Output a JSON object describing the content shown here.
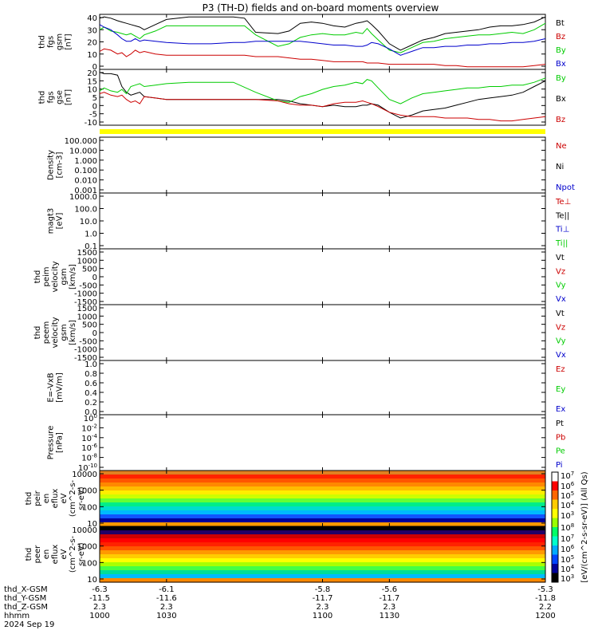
{
  "title": "P3 (TH-D) fields and on-board moments overview",
  "colors": {
    "black": "#000000",
    "red": "#cc0000",
    "green": "#00cc00",
    "blue": "#0000cc",
    "yellow": "#ffff00"
  },
  "chart_data": [
    {
      "id": "fgs1",
      "type": "line",
      "ylabel": [
        "thd",
        "fgs",
        "gsm",
        "[nT]"
      ],
      "ylim": [
        0,
        43
      ],
      "yticks": [
        "40",
        "30",
        "20",
        "10",
        "0"
      ],
      "legend": [
        {
          "name": "Bt",
          "color": "#000000"
        },
        {
          "name": "Bz",
          "color": "#cc0000"
        },
        {
          "name": "By",
          "color": "#00cc00"
        },
        {
          "name": "Bx",
          "color": "#0000cc"
        }
      ],
      "series": [
        {
          "name": "Bt",
          "color": "#000000",
          "x": [
            1000,
            1002,
            1005,
            1008,
            1010,
            1012,
            1014,
            1016,
            1018,
            1020,
            1025,
            1030,
            1040,
            1050,
            1060,
            1065,
            1070,
            1080,
            1085,
            1090,
            1095,
            1100,
            1105,
            1110,
            1115,
            1118,
            1120,
            1122,
            1125,
            1130,
            1135,
            1140,
            1145,
            1150,
            1155,
            1160,
            1165,
            1170,
            1175,
            1180,
            1185,
            1190,
            1195,
            1200
          ],
          "y": [
            40,
            41,
            40,
            38,
            37,
            36,
            35,
            34,
            33,
            31,
            35,
            39,
            41,
            41,
            41,
            40,
            29,
            28,
            30,
            36,
            37,
            36,
            34,
            33,
            36,
            37,
            38,
            35,
            30,
            20,
            15,
            19,
            23,
            25,
            28,
            29,
            30,
            31,
            33,
            34,
            34,
            35,
            37,
            41
          ]
        },
        {
          "name": "By",
          "color": "#00cc00",
          "x": [
            1000,
            1002,
            1005,
            1008,
            1010,
            1012,
            1014,
            1016,
            1018,
            1020,
            1025,
            1030,
            1040,
            1050,
            1060,
            1065,
            1070,
            1080,
            1085,
            1090,
            1095,
            1100,
            1105,
            1110,
            1115,
            1118,
            1120,
            1122,
            1125,
            1130,
            1135,
            1140,
            1145,
            1150,
            1155,
            1160,
            1165,
            1170,
            1175,
            1180,
            1185,
            1190,
            1195,
            1200
          ],
          "y": [
            31,
            33,
            30,
            29,
            28,
            27,
            28,
            26,
            24,
            27,
            30,
            34,
            34,
            34,
            34,
            34,
            27,
            18,
            20,
            25,
            27,
            28,
            27,
            27,
            29,
            28,
            32,
            28,
            23,
            15,
            13,
            17,
            21,
            22,
            24,
            25,
            26,
            27,
            27,
            28,
            29,
            28,
            31,
            36
          ]
        },
        {
          "name": "Bx",
          "color": "#0000cc",
          "x": [
            1000,
            1002,
            1005,
            1008,
            1010,
            1012,
            1014,
            1016,
            1018,
            1020,
            1025,
            1030,
            1040,
            1050,
            1060,
            1065,
            1070,
            1080,
            1085,
            1090,
            1095,
            1100,
            1105,
            1110,
            1115,
            1118,
            1120,
            1122,
            1125,
            1130,
            1135,
            1140,
            1145,
            1150,
            1155,
            1160,
            1165,
            1170,
            1175,
            1180,
            1185,
            1190,
            1195,
            1200
          ],
          "y": [
            35,
            33,
            31,
            27,
            24,
            22,
            22,
            24,
            22,
            23,
            22,
            21,
            20,
            20,
            21,
            21,
            22,
            22,
            22,
            22,
            21,
            20,
            19,
            19,
            18,
            18,
            19,
            21,
            20,
            16,
            11,
            14,
            17,
            17,
            18,
            18,
            19,
            19,
            20,
            20,
            21,
            21,
            22,
            24
          ]
        },
        {
          "name": "Bz",
          "color": "#cc0000",
          "x": [
            1000,
            1002,
            1005,
            1008,
            1010,
            1012,
            1014,
            1016,
            1018,
            1020,
            1025,
            1030,
            1040,
            1050,
            1060,
            1065,
            1070,
            1080,
            1085,
            1090,
            1095,
            1100,
            1105,
            1110,
            1115,
            1118,
            1120,
            1122,
            1125,
            1130,
            1135,
            1140,
            1145,
            1150,
            1155,
            1160,
            1165,
            1170,
            1175,
            1180,
            1185,
            1190,
            1195,
            1200
          ],
          "y": [
            14,
            16,
            15,
            12,
            13,
            10,
            12,
            15,
            13,
            14,
            12,
            11,
            11,
            11,
            11,
            11,
            10,
            10,
            9,
            8,
            8,
            7,
            6,
            6,
            6,
            6,
            5,
            5,
            5,
            4,
            4,
            4,
            4,
            4,
            3,
            3,
            2,
            2,
            2,
            2,
            2,
            2,
            3,
            4
          ]
        }
      ]
    },
    {
      "id": "fgs2",
      "type": "line",
      "ylabel": [
        "thd",
        "fgs",
        "gse",
        "[nT]"
      ],
      "ylim": [
        -17,
        22
      ],
      "yticks": [
        "20",
        "15",
        "10",
        "5",
        "0",
        "-5",
        "-10"
      ],
      "legend": [
        {
          "name": "By",
          "color": "#00cc00"
        },
        {
          "name": "Bx",
          "color": "#000000"
        },
        {
          "name": "Bz",
          "color": "#cc0000"
        }
      ],
      "series": [
        {
          "name": "Bx",
          "color": "#000000",
          "x": [
            1000,
            1002,
            1005,
            1008,
            1010,
            1012,
            1014,
            1016,
            1018,
            1020,
            1025,
            1030,
            1040,
            1050,
            1060,
            1070,
            1080,
            1085,
            1090,
            1095,
            1100,
            1105,
            1110,
            1115,
            1118,
            1120,
            1122,
            1125,
            1130,
            1135,
            1140,
            1145,
            1150,
            1155,
            1160,
            1165,
            1170,
            1175,
            1180,
            1185,
            1190,
            1195,
            1200
          ],
          "y": [
            20,
            19,
            19,
            18,
            10,
            6,
            4,
            5,
            6,
            3,
            2,
            1,
            1,
            1,
            1,
            1,
            1,
            0,
            -2,
            -3,
            -4,
            -3,
            -4,
            -4,
            -3,
            -3,
            -2,
            -3,
            -8,
            -12,
            -10,
            -7,
            -6,
            -5,
            -3,
            -1,
            1,
            2,
            3,
            4,
            6,
            10,
            14
          ]
        },
        {
          "name": "By",
          "color": "#00cc00",
          "x": [
            1000,
            1002,
            1005,
            1008,
            1010,
            1012,
            1014,
            1016,
            1018,
            1020,
            1025,
            1030,
            1040,
            1050,
            1060,
            1070,
            1080,
            1085,
            1090,
            1095,
            1100,
            1105,
            1110,
            1115,
            1118,
            1120,
            1122,
            1125,
            1130,
            1135,
            1140,
            1145,
            1150,
            1155,
            1160,
            1165,
            1170,
            1175,
            1180,
            1185,
            1190,
            1195,
            1200
          ],
          "y": [
            7,
            9,
            7,
            6,
            8,
            5,
            10,
            11,
            12,
            10,
            11,
            12,
            13,
            13,
            13,
            6,
            0,
            -1,
            3,
            5,
            8,
            10,
            11,
            13,
            12,
            15,
            14,
            9,
            1,
            -2,
            2,
            5,
            6,
            7,
            8,
            9,
            9,
            10,
            10,
            11,
            11,
            13,
            16
          ]
        },
        {
          "name": "Bz",
          "color": "#cc0000",
          "x": [
            1000,
            1002,
            1005,
            1008,
            1010,
            1012,
            1014,
            1016,
            1018,
            1020,
            1025,
            1030,
            1040,
            1050,
            1060,
            1070,
            1080,
            1085,
            1090,
            1095,
            1100,
            1105,
            1110,
            1115,
            1118,
            1120,
            1122,
            1125,
            1130,
            1135,
            1140,
            1145,
            1150,
            1155,
            1160,
            1165,
            1170,
            1175,
            1180,
            1185,
            1190,
            1195,
            1200
          ],
          "y": [
            5,
            6,
            4,
            3,
            4,
            1,
            -1,
            0,
            -2,
            3,
            2,
            1,
            1,
            1,
            1,
            1,
            0,
            -2,
            -3,
            -3,
            -4,
            -2,
            -1,
            -1,
            0,
            -1,
            -2,
            -4,
            -8,
            -10,
            -11,
            -11,
            -11,
            -12,
            -12,
            -12,
            -13,
            -13,
            -14,
            -14,
            -13,
            -12,
            -11
          ]
        }
      ]
    },
    {
      "id": "density",
      "type": "line",
      "ylabel": [
        "Density",
        "[cm-3]"
      ],
      "yticks": [
        "100.000",
        "10.000",
        "1.000",
        "0.100",
        "0.010",
        "0.001"
      ],
      "legend": [
        {
          "name": "Ne",
          "color": "#cc0000"
        },
        {
          "name": "Ni",
          "color": "#000000"
        },
        {
          "name": "Npot",
          "color": "#0000cc"
        }
      ]
    },
    {
      "id": "temp",
      "type": "line",
      "ylabel": [
        "magt3",
        "[eV]"
      ],
      "yticks": [
        "1000.0",
        "100.0",
        "10.0",
        "1.0",
        "0.1"
      ],
      "legend": [
        {
          "name": "Te⊥",
          "color": "#cc0000"
        },
        {
          "name": "Te||",
          "color": "#000000"
        },
        {
          "name": "Ti⊥",
          "color": "#0000cc"
        },
        {
          "name": "Ti||",
          "color": "#00cc00"
        }
      ]
    },
    {
      "id": "vi",
      "type": "line",
      "ylabel": [
        "thd",
        "peim",
        "velocity",
        "gsm",
        "[km/s]"
      ],
      "yticks": [
        "1500",
        "1000",
        "500",
        "0",
        "-500",
        "-1000",
        "-1500"
      ],
      "legend": [
        {
          "name": "Vt",
          "color": "#000000"
        },
        {
          "name": "Vz",
          "color": "#cc0000"
        },
        {
          "name": "Vy",
          "color": "#00cc00"
        },
        {
          "name": "Vx",
          "color": "#0000cc"
        }
      ]
    },
    {
      "id": "ve",
      "type": "line",
      "ylabel": [
        "thd",
        "peem",
        "velocity",
        "gsm",
        "[km/s]"
      ],
      "yticks": [
        "1500",
        "1000",
        "500",
        "0",
        "-500",
        "-1000",
        "-1500"
      ],
      "legend": [
        {
          "name": "Vt",
          "color": "#000000"
        },
        {
          "name": "Vz",
          "color": "#cc0000"
        },
        {
          "name": "Vy",
          "color": "#00cc00"
        },
        {
          "name": "Vx",
          "color": "#0000cc"
        }
      ]
    },
    {
      "id": "efield",
      "type": "line",
      "ylabel": [
        "E=-VxB",
        "[mV/m]"
      ],
      "yticks": [
        "1.0",
        "0.8",
        "0.6",
        "0.4",
        "0.2",
        "0.0"
      ],
      "legend": [
        {
          "name": "Ez",
          "color": "#cc0000"
        },
        {
          "name": "Ey",
          "color": "#00cc00"
        },
        {
          "name": "Ex",
          "color": "#0000cc"
        }
      ]
    },
    {
      "id": "pressure",
      "type": "line",
      "ylabel": [
        "Pressure",
        "[nPa]"
      ],
      "yticks": [
        {
          "base": "10",
          "exp": "0"
        },
        {
          "base": "10",
          "exp": "-2"
        },
        {
          "base": "10",
          "exp": "-4"
        },
        {
          "base": "10",
          "exp": "-6"
        },
        {
          "base": "10",
          "exp": "-8"
        },
        {
          "base": "10",
          "exp": "-10"
        }
      ],
      "legend": [
        {
          "name": "Pt",
          "color": "#000000"
        },
        {
          "name": "Pb",
          "color": "#cc0000"
        },
        {
          "name": "Pe",
          "color": "#00cc00"
        },
        {
          "name": "Pi",
          "color": "#0000cc"
        }
      ]
    },
    {
      "id": "peir",
      "type": "heatmap",
      "ylabel": [
        "thd",
        "peir",
        "en",
        "eflux",
        "eV",
        "(cm^2-s-",
        "sr-eV)"
      ],
      "yticks": [
        "10000",
        "1000",
        "100",
        "10"
      ],
      "bands": [
        "#e08020",
        "#ff2200",
        "#ff5500",
        "#ff8800",
        "#ffbb00",
        "#ffee00",
        "#ccff00",
        "#66ff33",
        "#00ee88",
        "#00ddcc",
        "#00bbff",
        "#1155ff",
        "#000099",
        "#ff9900"
      ]
    },
    {
      "id": "peer",
      "type": "heatmap",
      "ylabel": [
        "thd",
        "peer",
        "en",
        "eflux",
        "eV",
        "(cm^2-s-",
        "sr-eV)"
      ],
      "yticks": [
        "10000",
        "1000",
        "100",
        "10"
      ],
      "bands": [
        "#000000",
        "#220066",
        "#cc0000",
        "#ff0000",
        "#ff2200",
        "#ff5500",
        "#ff9900",
        "#ffcc00",
        "#ffff00",
        "#aaff00",
        "#44ff44",
        "#00dd99",
        "#00bbff",
        "#ff8800"
      ]
    }
  ],
  "colorbar": {
    "label": "[eV/(cm^2-s-sr-eV)] (All Qs)",
    "ticks": [
      {
        "base": "10",
        "exp": "7"
      },
      {
        "base": "10",
        "exp": "6"
      },
      {
        "base": "10",
        "exp": "5"
      },
      {
        "base": "10",
        "exp": "4"
      },
      {
        "base": "10",
        "exp": "3"
      },
      {
        "base": "10",
        "exp": "8"
      },
      {
        "base": "10",
        "exp": "7"
      },
      {
        "base": "10",
        "exp": "6"
      },
      {
        "base": "10",
        "exp": "5"
      },
      {
        "base": "10",
        "exp": "4"
      },
      {
        "base": "10",
        "exp": "3"
      }
    ]
  },
  "xaxis": {
    "labels": [
      "thd_X-GSM",
      "thd_Y-GSM",
      "thd_Z-GSM",
      "hhmm",
      "2024 Sep 19"
    ],
    "ticks": [
      {
        "x": 1000,
        "values": [
          "-6.3",
          "-11.5",
          "2.3",
          "1000"
        ]
      },
      {
        "x": 1030,
        "values": [
          "-6.1",
          "-11.6",
          "2.3",
          "1030"
        ]
      },
      {
        "x": 1100,
        "values": [
          "-5.8",
          "-11.7",
          "2.3",
          "1100"
        ]
      },
      {
        "x": 1130,
        "values": [
          "-5.6",
          "-11.7",
          "2.3",
          "1130"
        ]
      },
      {
        "x": 1200,
        "values": [
          "-5.3",
          "-11.8",
          "2.2",
          "1200"
        ]
      }
    ],
    "xlim": [
      1000,
      1200
    ]
  }
}
